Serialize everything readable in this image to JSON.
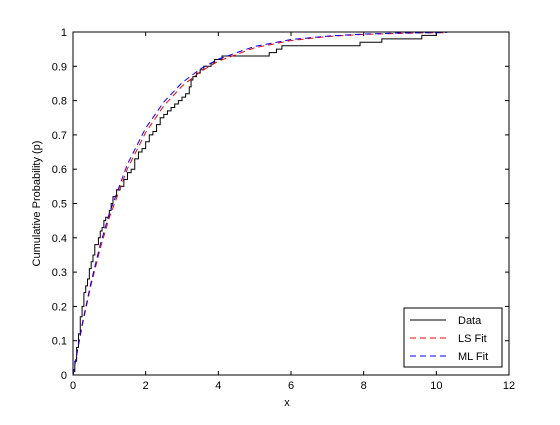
{
  "chart_data": {
    "type": "line",
    "title": "",
    "xlabel": "x",
    "ylabel": "Cumulative Probability (p)",
    "xlim": [
      0,
      12
    ],
    "ylim": [
      0,
      1
    ],
    "xticks": [
      0,
      2,
      4,
      6,
      8,
      10,
      12
    ],
    "yticks": [
      0,
      0.1,
      0.2,
      0.3,
      0.4,
      0.5,
      0.6,
      0.7,
      0.8,
      0.9,
      1
    ],
    "xtick_labels": [
      "0",
      "2",
      "4",
      "6",
      "8",
      "10",
      "12"
    ],
    "ytick_labels": [
      "0",
      "0.1",
      "0.2",
      "0.3",
      "0.4",
      "0.5",
      "0.6",
      "0.7",
      "0.8",
      "0.9",
      "1"
    ],
    "grid": false,
    "legend_position": "bottom-right",
    "series": [
      {
        "name": "Data",
        "style": "step",
        "color": "#000000",
        "dash": "solid",
        "x": [
          0,
          0.05,
          0.1,
          0.15,
          0.2,
          0.25,
          0.3,
          0.35,
          0.4,
          0.45,
          0.5,
          0.55,
          0.6,
          0.7,
          0.75,
          0.8,
          0.85,
          0.9,
          1.0,
          1.05,
          1.1,
          1.2,
          1.3,
          1.4,
          1.5,
          1.6,
          1.7,
          1.8,
          1.9,
          2.0,
          2.1,
          2.2,
          2.3,
          2.4,
          2.5,
          2.6,
          2.7,
          2.8,
          2.9,
          3.0,
          3.1,
          3.2,
          3.25,
          3.3,
          3.4,
          3.5,
          3.6,
          3.75,
          3.8,
          3.9,
          4.0,
          4.1,
          5.4,
          5.6,
          5.75,
          7.9,
          8.5,
          9.2,
          9.6,
          9.8,
          10.0,
          10.1,
          10.3
        ],
        "y": [
          0.01,
          0.04,
          0.08,
          0.12,
          0.17,
          0.2,
          0.24,
          0.26,
          0.28,
          0.31,
          0.33,
          0.35,
          0.38,
          0.4,
          0.42,
          0.43,
          0.45,
          0.46,
          0.48,
          0.5,
          0.52,
          0.54,
          0.55,
          0.57,
          0.59,
          0.6,
          0.63,
          0.65,
          0.66,
          0.68,
          0.7,
          0.71,
          0.73,
          0.75,
          0.76,
          0.77,
          0.78,
          0.79,
          0.8,
          0.81,
          0.82,
          0.84,
          0.86,
          0.87,
          0.88,
          0.89,
          0.9,
          0.9,
          0.91,
          0.92,
          0.92,
          0.93,
          0.94,
          0.95,
          0.96,
          0.97,
          0.98,
          0.98,
          0.99,
          0.99,
          1.0,
          1.0,
          1.0
        ]
      },
      {
        "name": "LS Fit",
        "style": "line",
        "color": "#ff0000",
        "dash": "dashed",
        "x": [
          0,
          0.25,
          0.5,
          0.75,
          1,
          1.5,
          2,
          2.5,
          3,
          3.5,
          4,
          5,
          6,
          7,
          8,
          9,
          10,
          10.3
        ],
        "y": [
          0,
          0.142,
          0.264,
          0.369,
          0.459,
          0.602,
          0.707,
          0.785,
          0.842,
          0.884,
          0.915,
          0.954,
          0.975,
          0.987,
          0.993,
          0.996,
          0.998,
          0.998
        ]
      },
      {
        "name": "ML Fit",
        "style": "line",
        "color": "#0000ff",
        "dash": "dashed",
        "x": [
          0,
          0.25,
          0.5,
          0.75,
          1,
          1.5,
          2,
          2.5,
          3,
          3.5,
          4,
          5,
          6,
          7,
          8,
          9,
          10,
          10.3
        ],
        "y": [
          0,
          0.147,
          0.272,
          0.38,
          0.471,
          0.615,
          0.72,
          0.796,
          0.852,
          0.892,
          0.921,
          0.958,
          0.978,
          0.988,
          0.994,
          0.997,
          0.998,
          0.999
        ]
      }
    ]
  }
}
